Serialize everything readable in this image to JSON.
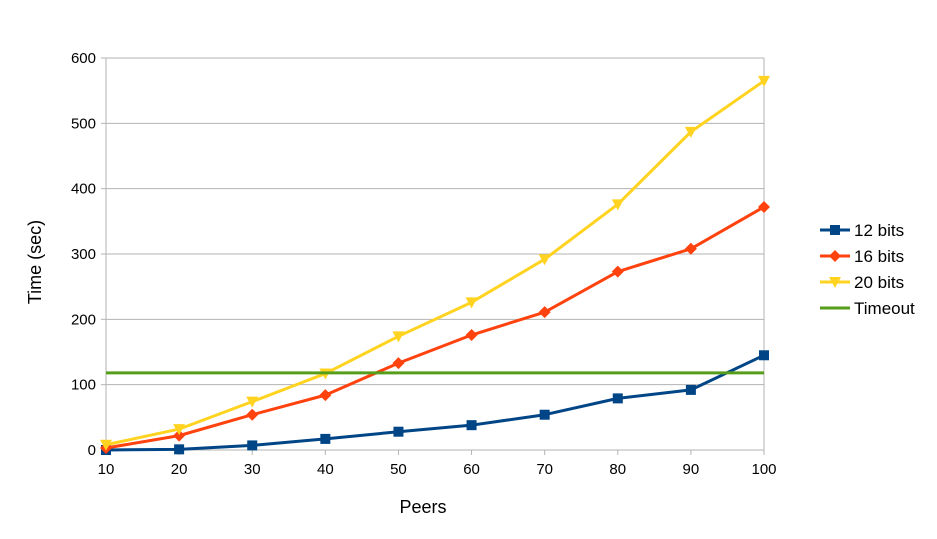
{
  "chart_data": {
    "type": "line",
    "xlabel": "Peers",
    "ylabel": "Time (sec)",
    "x": [
      10,
      20,
      30,
      40,
      50,
      60,
      70,
      80,
      90,
      100
    ],
    "xlim": [
      10,
      100
    ],
    "ylim": [
      0,
      600
    ],
    "yticks": [
      0,
      100,
      200,
      300,
      400,
      500,
      600
    ],
    "xticks": [
      10,
      20,
      30,
      40,
      50,
      60,
      70,
      80,
      90,
      100
    ],
    "grid": "horizontal",
    "legend_position": "right",
    "series": [
      {
        "name": "12 bits",
        "color": "#004586",
        "marker": "square",
        "values": [
          0,
          1,
          7,
          17,
          28,
          38,
          54,
          79,
          92,
          145
        ]
      },
      {
        "name": "16 bits",
        "color": "#ff420e",
        "marker": "diamond",
        "values": [
          3,
          22,
          54,
          84,
          133,
          176,
          211,
          273,
          308,
          372
        ]
      },
      {
        "name": "20 bits",
        "color": "#ffd320",
        "marker": "triangle-down",
        "values": [
          8,
          32,
          74,
          117,
          174,
          226,
          292,
          376,
          487,
          565
        ]
      },
      {
        "name": "Timeout",
        "color": "#579d1c",
        "marker": "none",
        "values": [
          118,
          118,
          118,
          118,
          118,
          118,
          118,
          118,
          118,
          118
        ]
      }
    ]
  }
}
